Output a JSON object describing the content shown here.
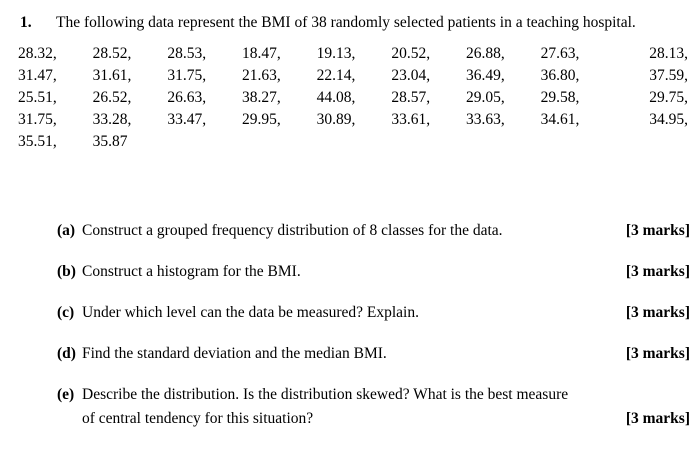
{
  "question": {
    "number": "1.",
    "text": "The following data represent the BMI of 38 randomly selected patients in a teaching hospital."
  },
  "data_rows": [
    [
      "28.32,",
      "28.52,",
      "28.53,",
      "18.47,",
      "19.13,",
      "20.52,",
      "26.88,",
      "27.63,",
      "28.13,"
    ],
    [
      "31.47,",
      "31.61,",
      "31.75,",
      "21.63,",
      "22.14,",
      "23.04,",
      "36.49,",
      "36.80,",
      "37.59,"
    ],
    [
      "25.51,",
      "26.52,",
      "26.63,",
      "38.27,",
      "44.08,",
      "28.57,",
      "29.05,",
      "29.58,",
      "29.75,"
    ],
    [
      "31.75,",
      "33.28,",
      "33.47,",
      "29.95,",
      "30.89,",
      "33.61,",
      "33.63,",
      "34.61,",
      "34.95,"
    ],
    [
      "35.51,",
      "35.87",
      "",
      "",
      "",
      "",
      "",
      "",
      ""
    ]
  ],
  "parts": [
    {
      "label": "(a)",
      "text": "Construct a grouped frequency distribution of 8 classes for the data.",
      "marks": "[3 marks]"
    },
    {
      "label": "(b)",
      "text": "Construct a histogram for the BMI.",
      "marks": "[3 marks]"
    },
    {
      "label": "(c)",
      "text": "Under which level can the data be measured? Explain.",
      "marks": "[3 marks]"
    },
    {
      "label": "(d)",
      "text": "Find the standard deviation and the median BMI.",
      "marks": "[3 marks]"
    },
    {
      "label": "(e)",
      "text": "Describe the distribution. Is the distribution skewed? What is the best measure of central tendency for this situation?",
      "marks": "[3 marks]"
    }
  ]
}
